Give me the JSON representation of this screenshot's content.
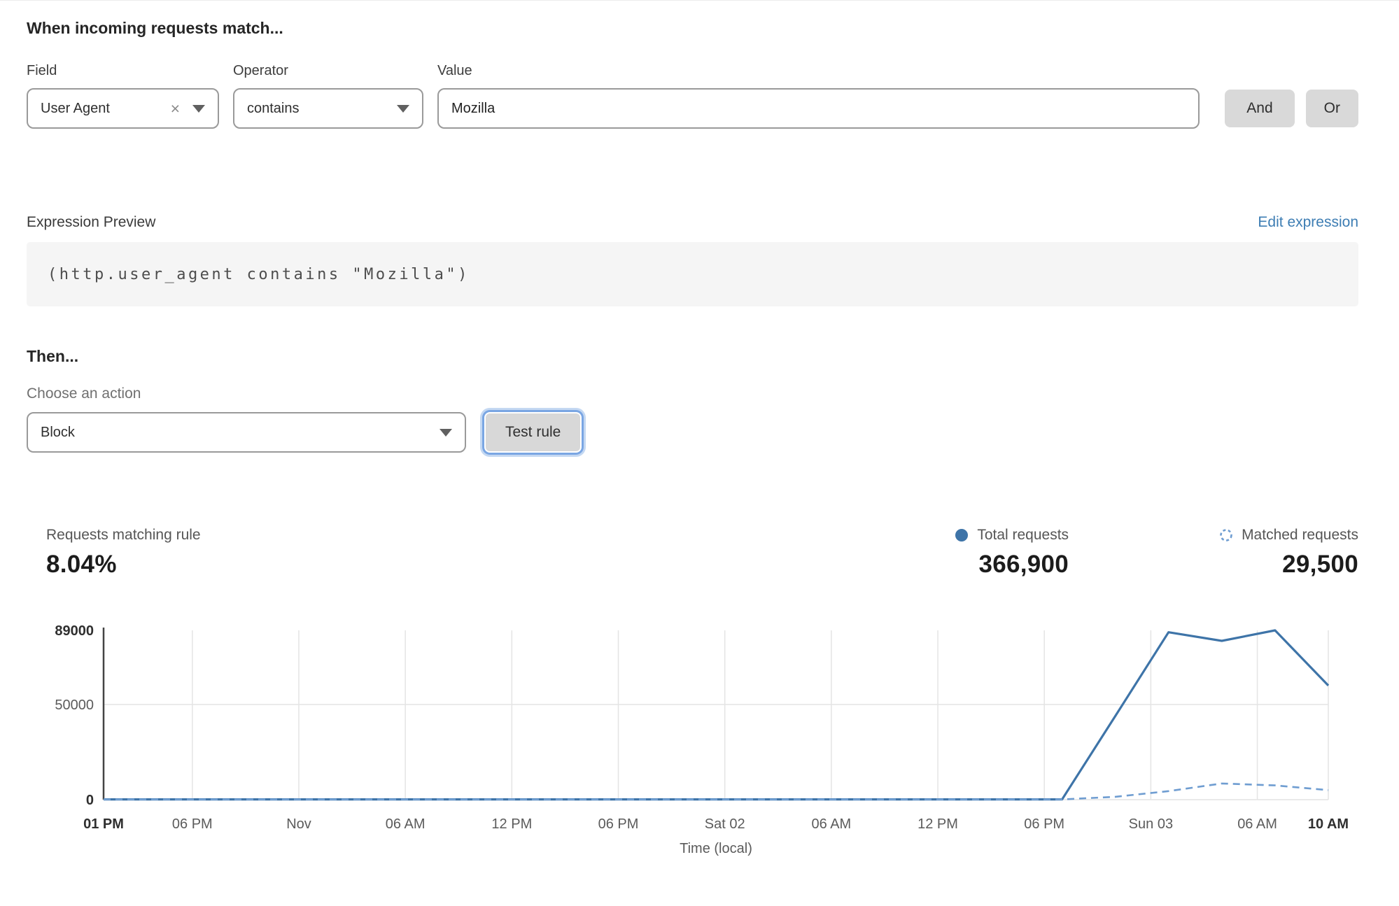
{
  "header": {
    "title": "When incoming requests match..."
  },
  "match": {
    "field_label": "Field",
    "field_value": "User Agent",
    "clear_icon": "×",
    "operator_label": "Operator",
    "operator_value": "contains",
    "value_label": "Value",
    "value_text": "Mozilla",
    "and_label": "And",
    "or_label": "Or"
  },
  "expression": {
    "label": "Expression Preview",
    "edit_link": "Edit expression",
    "code": "(http.user_agent contains \"Mozilla\")"
  },
  "action": {
    "heading": "Then...",
    "choose_label": "Choose an action",
    "selected_action": "Block",
    "test_button": "Test rule"
  },
  "stats": {
    "matching": {
      "label": "Requests matching rule",
      "value": "8.04%"
    },
    "total": {
      "label": "Total requests",
      "value": "366,900",
      "legend_color": "#3e74a8"
    },
    "matched": {
      "label": "Matched requests",
      "value": "29,500",
      "legend_color": "#6f9dd1"
    }
  },
  "chart_data": {
    "type": "line",
    "title": "",
    "xlabel": "Time (local)",
    "ylabel": "",
    "ylim": [
      0,
      89000
    ],
    "x_range_hours": [
      0,
      69
    ],
    "grid": true,
    "legend_position": "above-right",
    "yticks": [
      {
        "value": 0,
        "label": "0",
        "bold": true
      },
      {
        "value": 50000,
        "label": "50000",
        "bold": false
      },
      {
        "value": 89000,
        "label": "89000",
        "bold": true
      }
    ],
    "xticks": [
      {
        "hour": 0,
        "label": "01 PM",
        "bold": true
      },
      {
        "hour": 5,
        "label": "06 PM",
        "bold": false
      },
      {
        "hour": 11,
        "label": "Nov",
        "bold": false
      },
      {
        "hour": 17,
        "label": "06 AM",
        "bold": false
      },
      {
        "hour": 23,
        "label": "12 PM",
        "bold": false
      },
      {
        "hour": 29,
        "label": "06 PM",
        "bold": false
      },
      {
        "hour": 35,
        "label": "Sat 02",
        "bold": false
      },
      {
        "hour": 41,
        "label": "06 AM",
        "bold": false
      },
      {
        "hour": 47,
        "label": "12 PM",
        "bold": false
      },
      {
        "hour": 53,
        "label": "06 PM",
        "bold": false
      },
      {
        "hour": 59,
        "label": "Sun 03",
        "bold": false
      },
      {
        "hour": 65,
        "label": "06 AM",
        "bold": false
      },
      {
        "hour": 69,
        "label": "10 AM",
        "bold": true
      }
    ],
    "series": [
      {
        "name": "Total requests",
        "style": "solid",
        "color": "#3e74a8",
        "points": [
          [
            0,
            130
          ],
          [
            3,
            130
          ],
          [
            6,
            130
          ],
          [
            9,
            130
          ],
          [
            12,
            130
          ],
          [
            15,
            130
          ],
          [
            18,
            130
          ],
          [
            21,
            130
          ],
          [
            24,
            130
          ],
          [
            27,
            130
          ],
          [
            30,
            130
          ],
          [
            33,
            130
          ],
          [
            36,
            130
          ],
          [
            39,
            130
          ],
          [
            42,
            130
          ],
          [
            45,
            130
          ],
          [
            48,
            130
          ],
          [
            51,
            130
          ],
          [
            54,
            130
          ],
          [
            57,
            44000
          ],
          [
            60,
            88000
          ],
          [
            63,
            83500
          ],
          [
            66,
            89000
          ],
          [
            69,
            60000
          ]
        ]
      },
      {
        "name": "Matched requests",
        "style": "dashed",
        "color": "#6f9dd1",
        "points": [
          [
            0,
            100
          ],
          [
            3,
            100
          ],
          [
            6,
            100
          ],
          [
            9,
            100
          ],
          [
            12,
            100
          ],
          [
            15,
            100
          ],
          [
            18,
            100
          ],
          [
            21,
            100
          ],
          [
            24,
            100
          ],
          [
            27,
            100
          ],
          [
            30,
            100
          ],
          [
            33,
            100
          ],
          [
            36,
            100
          ],
          [
            39,
            100
          ],
          [
            42,
            100
          ],
          [
            45,
            100
          ],
          [
            48,
            100
          ],
          [
            51,
            100
          ],
          [
            54,
            100
          ],
          [
            57,
            1500
          ],
          [
            60,
            4500
          ],
          [
            63,
            8500
          ],
          [
            66,
            7500
          ],
          [
            69,
            5000
          ]
        ]
      }
    ]
  }
}
